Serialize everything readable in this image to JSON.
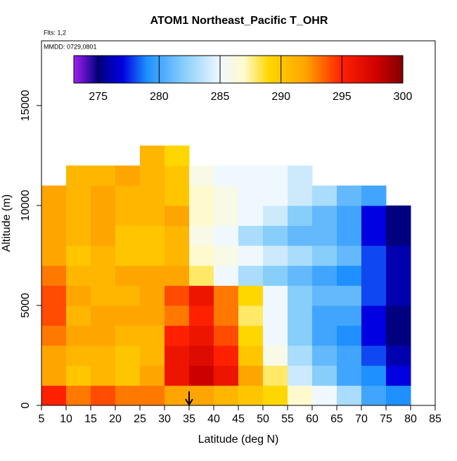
{
  "chart_data": {
    "type": "heatmap",
    "title": "ATOM1 Northeast_Pacific T_OHR",
    "annotations": [
      "Flts: 1,2",
      "MMDD: 0729,0801"
    ],
    "x_label": "Latitude (deg N)",
    "y_label": "Altitude (m)",
    "xlim": [
      5,
      85
    ],
    "xticks": [
      5,
      10,
      15,
      20,
      25,
      30,
      35,
      40,
      45,
      50,
      55,
      60,
      65,
      70,
      75,
      80,
      85
    ],
    "ylim": [
      0,
      18240
    ],
    "yticks": [
      0,
      5000,
      10000,
      15000
    ],
    "x_edges": [
      5,
      10,
      15,
      20,
      25,
      30,
      35,
      40,
      45,
      50,
      55,
      60,
      65,
      70,
      75,
      80
    ],
    "y_edges": [
      0,
      1000,
      2000,
      3000,
      4000,
      5000,
      6000,
      7000,
      8000,
      9000,
      10000,
      11000,
      12000,
      13000
    ],
    "values": [
      [
        295,
        293,
        294,
        293,
        293,
        292,
        292,
        291,
        290,
        289,
        287,
        285,
        283,
        280,
        279
      ],
      [
        292,
        290,
        291,
        290,
        292,
        296,
        298,
        296,
        292,
        288,
        284,
        282,
        280,
        279,
        277
      ],
      [
        292,
        291,
        291,
        290,
        291,
        296,
        297,
        295,
        290,
        286,
        283,
        281,
        280,
        278,
        276
      ],
      [
        293,
        292,
        292,
        291,
        291,
        295,
        296,
        294,
        289,
        285,
        282,
        280,
        279,
        277,
        275
      ],
      [
        294,
        291,
        292,
        292,
        292,
        293,
        295,
        293,
        288,
        285,
        282,
        280,
        280,
        277,
        275
      ],
      [
        294,
        292,
        291,
        291,
        292,
        294,
        296,
        293,
        289,
        285,
        282,
        281,
        281,
        278,
        276
      ],
      [
        293,
        291,
        291,
        292,
        292,
        292,
        288,
        285,
        283,
        282,
        281,
        280,
        279,
        278,
        276
      ],
      [
        292,
        290,
        291,
        290,
        290,
        291,
        287,
        286,
        285,
        284,
        283,
        282,
        281,
        278,
        276
      ],
      [
        292,
        291,
        292,
        290,
        290,
        291,
        286,
        285,
        283,
        282,
        281,
        281,
        280,
        277,
        275
      ],
      [
        292,
        291,
        292,
        291,
        291,
        292,
        287,
        286,
        285,
        284,
        282,
        281,
        280,
        277,
        275
      ],
      [
        292,
        291,
        292,
        291,
        291,
        290,
        287,
        286,
        285,
        285,
        284,
        283,
        281,
        280,
        null
      ],
      [
        null,
        291,
        291,
        292,
        291,
        290,
        286,
        285,
        285,
        285,
        284,
        null,
        null,
        null,
        null
      ],
      [
        null,
        null,
        null,
        null,
        291,
        289,
        null,
        null,
        null,
        null,
        null,
        null,
        null,
        null,
        null
      ]
    ],
    "colorbar_lim": [
      273,
      300
    ],
    "colorbar_ticks": [
      275,
      280,
      285,
      290,
      295,
      300
    ],
    "colorscale": [
      {
        "value": 273,
        "color": "#a020f0"
      },
      {
        "value": 275,
        "color": "#000080"
      },
      {
        "value": 277,
        "color": "#0000e0"
      },
      {
        "value": 279,
        "color": "#1e90ff"
      },
      {
        "value": 282,
        "color": "#87cefa"
      },
      {
        "value": 285,
        "color": "#f0f8ff"
      },
      {
        "value": 287,
        "color": "#fffacd"
      },
      {
        "value": 289,
        "color": "#ffd700"
      },
      {
        "value": 292,
        "color": "#ffa500"
      },
      {
        "value": 295,
        "color": "#ff2000"
      },
      {
        "value": 298,
        "color": "#cc0000"
      },
      {
        "value": 300,
        "color": "#800000"
      }
    ],
    "marker_lat": 35
  }
}
